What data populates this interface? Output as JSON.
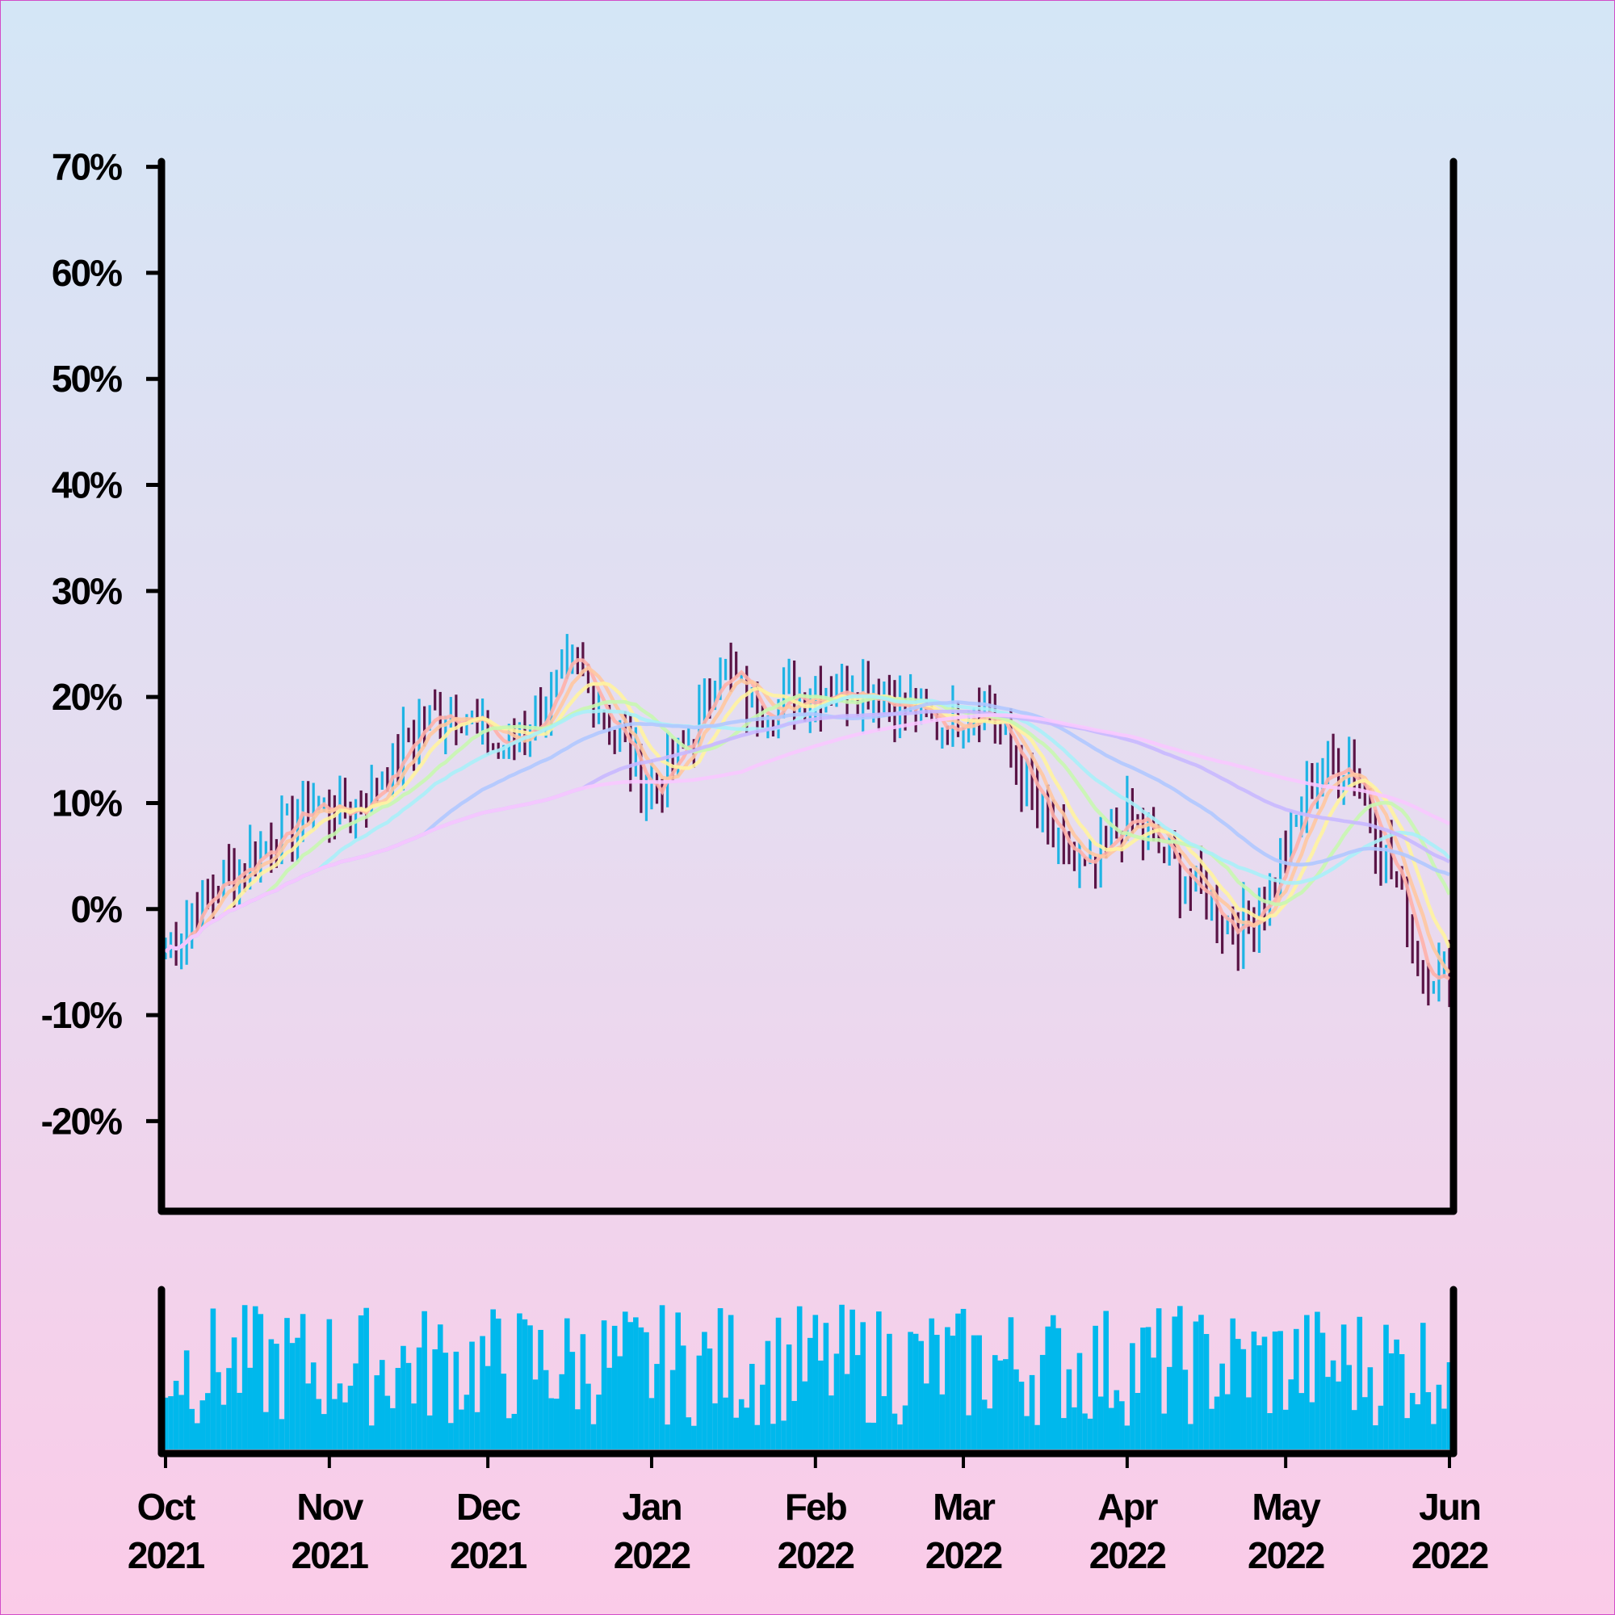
{
  "chart_data": {
    "type": "ohlc",
    "y_axis": {
      "ticks": [
        "70%",
        "60%",
        "50%",
        "40%",
        "30%",
        "20%",
        "10%",
        "0%",
        "-10%",
        "-20%"
      ],
      "tick_values": [
        70,
        60,
        50,
        40,
        30,
        20,
        10,
        0,
        -10,
        -20
      ],
      "ylim": [
        -28.5,
        70.5
      ]
    },
    "x_axis": {
      "ticks": [
        {
          "month": "Oct",
          "year": "2021"
        },
        {
          "month": "Nov",
          "year": "2021"
        },
        {
          "month": "Dec",
          "year": "2021"
        },
        {
          "month": "Jan",
          "year": "2022"
        },
        {
          "month": "Feb",
          "year": "2022"
        },
        {
          "month": "Mar",
          "year": "2022"
        },
        {
          "month": "Apr",
          "year": "2022"
        },
        {
          "month": "May",
          "year": "2022"
        },
        {
          "month": "Jun",
          "year": "2022"
        }
      ],
      "range": [
        "2021-10-01",
        "2022-06-01"
      ]
    },
    "grid": false,
    "up_color": "#1fb4e4",
    "down_color": "#5a1446",
    "volume_color": "#00b8ec",
    "moving_average_colors": [
      "#ffb0a8",
      "#ffc7a0",
      "#fff3a0",
      "#c8f7b0",
      "#a8f0f8",
      "#b0c8ff",
      "#c8b8ff",
      "#f8c8ff"
    ],
    "close_anchors": [
      [
        "2021-10-01",
        -4
      ],
      [
        "2021-10-08",
        1
      ],
      [
        "2021-10-15",
        4
      ],
      [
        "2021-10-22",
        7
      ],
      [
        "2021-10-29",
        10
      ],
      [
        "2021-11-05",
        9
      ],
      [
        "2021-11-12",
        13
      ],
      [
        "2021-11-19",
        18
      ],
      [
        "2021-11-26",
        19
      ],
      [
        "2021-12-03",
        15
      ],
      [
        "2021-12-10",
        18
      ],
      [
        "2021-12-17",
        23
      ],
      [
        "2021-12-24",
        18
      ],
      [
        "2021-12-31",
        11
      ],
      [
        "2022-01-07",
        15
      ],
      [
        "2022-01-14",
        23
      ],
      [
        "2022-01-21",
        19
      ],
      [
        "2022-01-28",
        20
      ],
      [
        "2022-02-04",
        21
      ],
      [
        "2022-02-11",
        21
      ],
      [
        "2022-02-18",
        19
      ],
      [
        "2022-02-25",
        17
      ],
      [
        "2022-03-04",
        20
      ],
      [
        "2022-03-11",
        14
      ],
      [
        "2022-03-18",
        6
      ],
      [
        "2022-03-25",
        3
      ],
      [
        "2022-04-01",
        9
      ],
      [
        "2022-04-08",
        5
      ],
      [
        "2022-04-15",
        1
      ],
      [
        "2022-04-22",
        -2
      ],
      [
        "2022-04-29",
        3
      ],
      [
        "2022-05-06",
        12
      ],
      [
        "2022-05-13",
        14
      ],
      [
        "2022-05-20",
        5
      ],
      [
        "2022-05-27",
        -6
      ],
      [
        "2022-06-01",
        -6
      ]
    ]
  }
}
